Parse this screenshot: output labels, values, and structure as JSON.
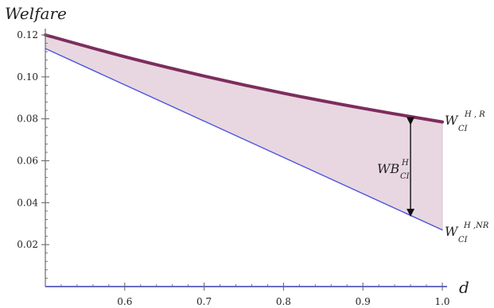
{
  "chart_data": {
    "type": "area",
    "title": "",
    "xlabel": "d",
    "ylabel": "Welfare",
    "xlim": [
      0.5,
      1.0
    ],
    "ylim": [
      0,
      0.12
    ],
    "x_ticks": [
      0.6,
      0.7,
      0.8,
      0.9,
      1.0
    ],
    "x_tick_labels": [
      "0.6",
      "0.7",
      "0.8",
      "0.9",
      "1.0"
    ],
    "y_ticks": [
      0.02,
      0.04,
      0.06,
      0.08,
      0.1,
      0.12
    ],
    "y_tick_labels": [
      "0.02",
      "0.04",
      "0.06",
      "0.08",
      "0.10",
      "0.12"
    ],
    "grid": false,
    "series": [
      {
        "name": "W_CI^{H,R}",
        "label_main": "W",
        "label_sub": "CI",
        "label_sup": "H , R",
        "color": "#7d2d5d",
        "x": [
          0.5,
          0.6,
          0.7,
          0.8,
          0.9,
          1.0
        ],
        "values": [
          0.12,
          0.1096,
          0.1004,
          0.0922,
          0.085,
          0.0785
        ]
      },
      {
        "name": "W_CI^{H,NR}",
        "label_main": "W",
        "label_sub": "CI",
        "label_sup": "H ,NR",
        "color": "#4a56e0",
        "x": [
          0.5,
          1.0
        ],
        "values": [
          0.1135,
          0.027
        ]
      }
    ],
    "shaded_region": {
      "between": [
        "W_CI^{H,R}",
        "W_CI^{H,NR}"
      ],
      "fill": "#e8d7e0",
      "stroke": "#d9c1cd"
    },
    "annotation": {
      "main": "WB",
      "sub": "CI",
      "sup": "H",
      "x": 0.96,
      "y_top": 0.0804,
      "y_bottom": 0.0337
    },
    "colors": {
      "axis": "#6b6b6b",
      "zero_line": "#6b6cc4",
      "text": "#222222"
    }
  }
}
